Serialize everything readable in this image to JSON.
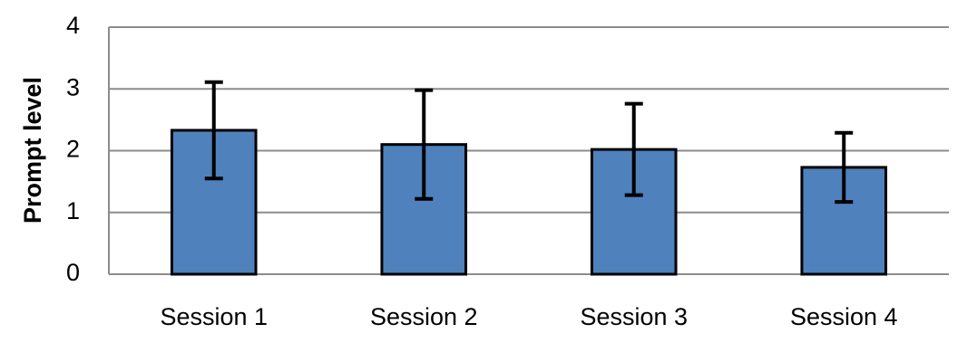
{
  "chart_data": {
    "type": "bar",
    "y_label": "Prompt level",
    "categories": [
      "Session 1",
      "Session 2",
      "Session 3",
      "Session 4"
    ],
    "values": [
      2.33,
      2.1,
      2.02,
      1.73
    ],
    "errors": [
      0.78,
      0.88,
      0.74,
      0.56
    ],
    "color": "#4f81bd",
    "ylim": [
      0,
      4
    ],
    "yticks": [
      0,
      1,
      2,
      3,
      4
    ],
    "grid": true
  }
}
